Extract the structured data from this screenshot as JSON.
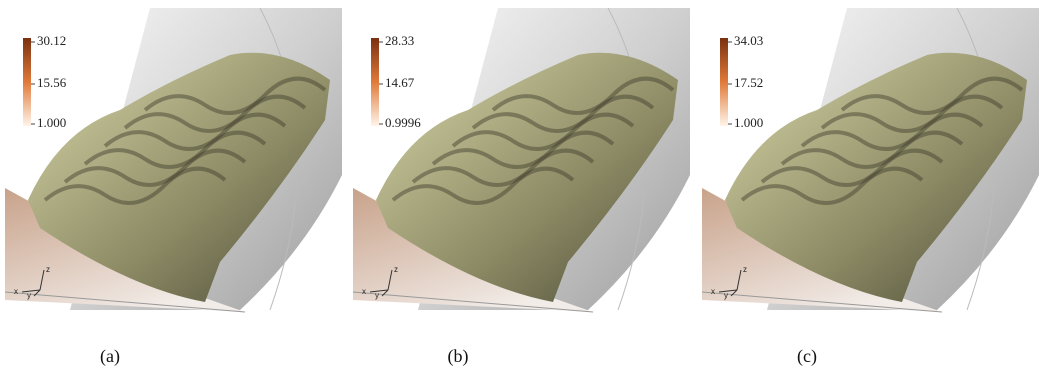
{
  "panels": [
    {
      "colorbar": {
        "max": "30.12",
        "mid": "15.56",
        "min": "1.000"
      },
      "axes": {
        "x": "x",
        "y": "y",
        "z": "z"
      },
      "caption": "(a)"
    },
    {
      "colorbar": {
        "max": "28.33",
        "mid": "14.67",
        "min": "0.9996"
      },
      "axes": {
        "x": "x",
        "y": "y",
        "z": "z"
      },
      "caption": "(b)"
    },
    {
      "colorbar": {
        "max": "34.03",
        "mid": "17.52",
        "min": "1.000"
      },
      "axes": {
        "x": "x",
        "y": "y",
        "z": "z"
      },
      "caption": "(c)"
    }
  ]
}
